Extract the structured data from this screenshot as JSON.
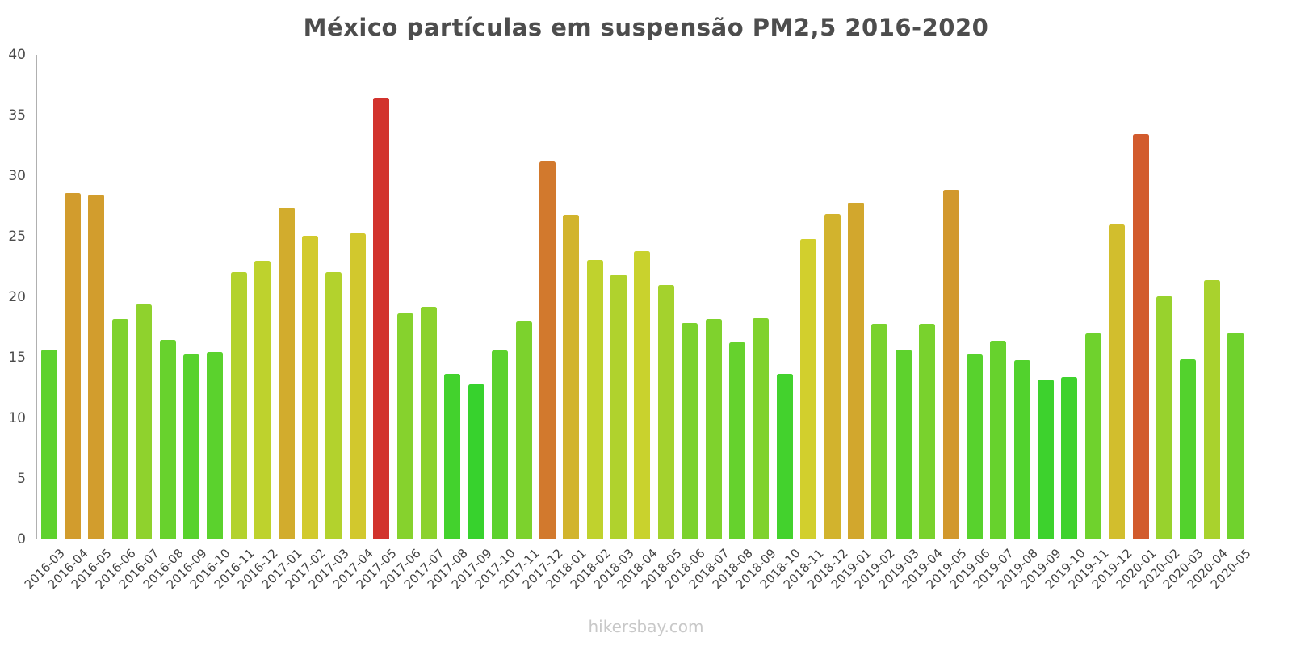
{
  "header": {
    "title": "México partículas em suspensão PM2,5 2016-2020"
  },
  "footer": {
    "watermark": "hikersbay.com"
  },
  "chart_data": {
    "type": "bar",
    "title": "México partículas em suspensão PM2,5 2016-2020",
    "xlabel": "",
    "ylabel": "",
    "ylim": [
      0,
      40
    ],
    "yticks": [
      0,
      5,
      10,
      15,
      20,
      25,
      30,
      35,
      40
    ],
    "grid": false,
    "legend": false,
    "categories": [
      "2016-03",
      "2016-04",
      "2016-05",
      "2016-06",
      "2016-07",
      "2016-08",
      "2016-09",
      "2016-10",
      "2016-11",
      "2016-12",
      "2017-01",
      "2017-02",
      "2017-03",
      "2017-04",
      "2017-05",
      "2017-06",
      "2017-07",
      "2017-08",
      "2017-09",
      "2017-10",
      "2017-11",
      "2017-12",
      "2018-01",
      "2018-02",
      "2018-03",
      "2018-04",
      "2018-05",
      "2018-06",
      "2018-07",
      "2018-08",
      "2018-09",
      "2018-10",
      "2018-11",
      "2018-12",
      "2019-01",
      "2019-02",
      "2019-03",
      "2019-04",
      "2019-05",
      "2019-06",
      "2019-07",
      "2019-08",
      "2019-09",
      "2019-10",
      "2019-11",
      "2019-12",
      "2020-01",
      "2020-02",
      "2020-03",
      "2020-04",
      "2020-05"
    ],
    "values": [
      15.7,
      28.6,
      28.5,
      18.2,
      19.4,
      16.5,
      15.3,
      15.5,
      22.1,
      23.0,
      27.4,
      25.1,
      22.1,
      25.3,
      36.5,
      18.7,
      19.2,
      13.7,
      12.8,
      15.6,
      18.0,
      31.2,
      26.8,
      23.1,
      21.9,
      23.8,
      21.0,
      17.9,
      18.2,
      16.3,
      18.3,
      13.7,
      24.8,
      26.9,
      27.8,
      17.8,
      15.7,
      17.8,
      28.9,
      15.3,
      16.4,
      14.8,
      13.2,
      13.4,
      17.0,
      26.0,
      33.5,
      20.1,
      14.9,
      21.4,
      17.1
    ],
    "color_scale": {
      "value_min": 12,
      "value_max": 37,
      "hue_at_min": 120,
      "hue_at_max": 0,
      "saturation": 65,
      "lightness": 50,
      "low_color": "#35cc35",
      "mid_color": "#c9cc2e",
      "high_color": "#d83a31"
    }
  }
}
